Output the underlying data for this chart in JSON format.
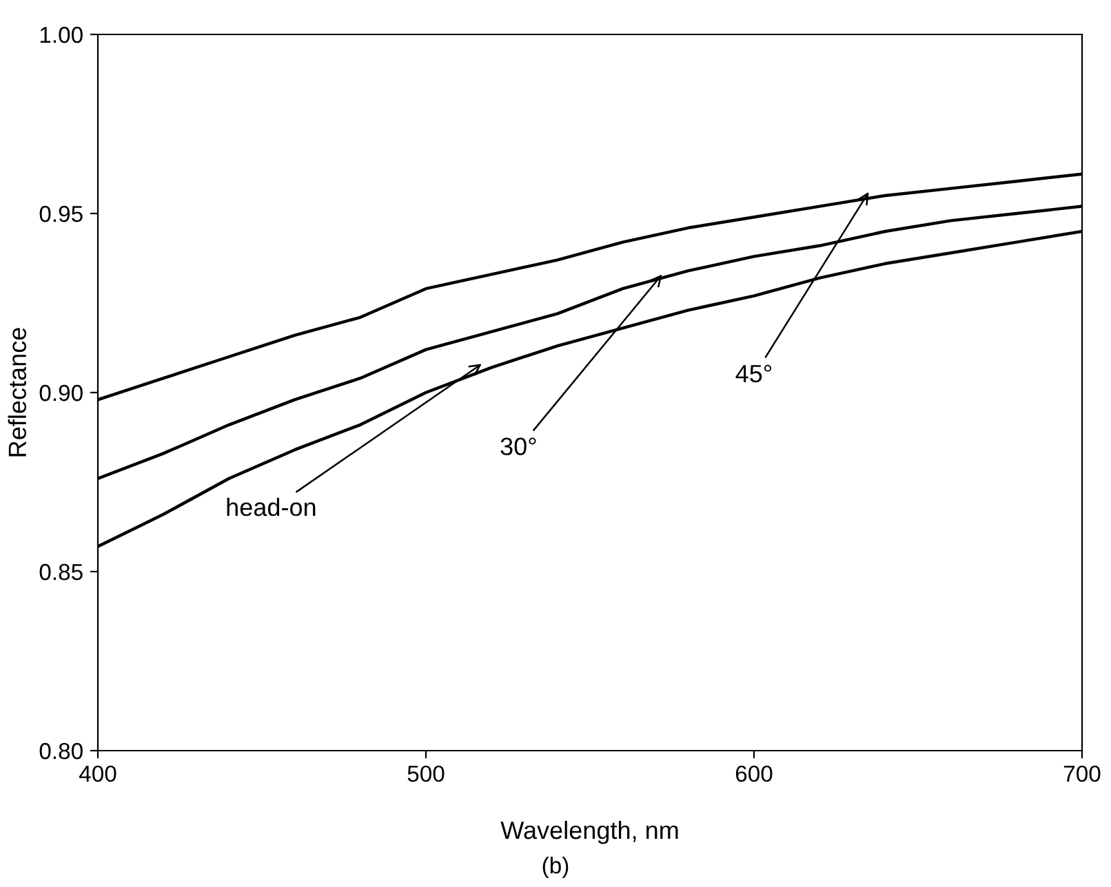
{
  "chart_data": {
    "type": "line",
    "xlabel": "Wavelength, nm",
    "ylabel": "Reflectance",
    "x": [
      400,
      420,
      440,
      460,
      480,
      500,
      520,
      540,
      560,
      580,
      600,
      620,
      640,
      660,
      680,
      700
    ],
    "series": [
      {
        "color": "#000000",
        "values": [
          0.898,
          0.904,
          0.91,
          0.916,
          0.921,
          0.929,
          0.933,
          0.937,
          0.942,
          0.946,
          0.949,
          0.952,
          0.955,
          0.957,
          0.959,
          0.961
        ]
      },
      {
        "color": "#000000",
        "values": [
          0.876,
          0.883,
          0.891,
          0.898,
          0.904,
          0.912,
          0.917,
          0.922,
          0.929,
          0.934,
          0.938,
          0.941,
          0.945,
          0.948,
          0.95,
          0.952
        ]
      },
      {
        "color": "#000000",
        "values": [
          0.857,
          0.866,
          0.876,
          0.884,
          0.891,
          0.9,
          0.907,
          0.913,
          0.918,
          0.923,
          0.927,
          0.932,
          0.936,
          0.939,
          0.942,
          0.945
        ]
      }
    ],
    "xlim": [
      400,
      700
    ],
    "xticks": [
      400,
      500,
      600,
      700
    ],
    "ylim": [
      0.8,
      1.0
    ],
    "yticks": [
      {
        "value": 0.8,
        "label": "0.80"
      },
      {
        "value": 0.85,
        "label": "0.85"
      },
      {
        "value": 0.9,
        "label": "0.90"
      },
      {
        "value": 0.95,
        "label": "0.95"
      },
      {
        "value": 1.0,
        "label": "1.00"
      }
    ],
    "grid": false,
    "legend": false,
    "marker": "none",
    "line_style": "solid",
    "annotations": [
      {
        "text": "head-on",
        "x": 517,
        "y": 0.908
      },
      {
        "text": "30°",
        "x": 572,
        "y": 0.933
      },
      {
        "text": "45°",
        "x": 635,
        "y": 0.956
      },
      "(b)"
    ]
  }
}
